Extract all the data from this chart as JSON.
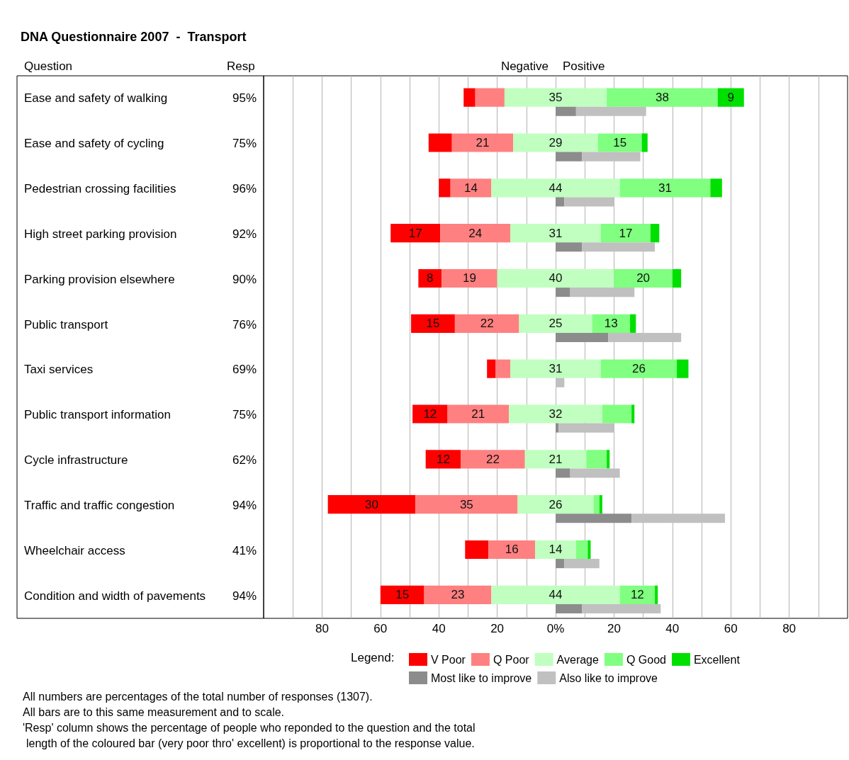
{
  "chart_data": {
    "type": "bar",
    "orientation": "horizontal",
    "title": "DNA Questionnaire 2007  -  Transport",
    "ylabel": "Question",
    "y2label": "Resp",
    "legend_title": "Legend:",
    "categories": [
      "Ease and safety of walking",
      "Ease and safety of cycling",
      "Pedestrian crossing facilities",
      "High street parking provision",
      "Parking provision elsewhere",
      "Public transport",
      "Taxi services",
      "Public transport information",
      "Cycle infrastructure",
      "Traffic and traffic congestion",
      "Wheelchair access",
      "Condition and width of pavements"
    ],
    "y2_categories": [
      "95%",
      "75%",
      "96%",
      "92%",
      "90%",
      "76%",
      "69%",
      "75%",
      "62%",
      "94%",
      "41%",
      "94%"
    ],
    "xlim": [
      -100,
      100
    ],
    "xticks": [
      {
        "value": -90,
        "label": null
      },
      {
        "value": -80,
        "label": "80"
      },
      {
        "value": -70,
        "label": null
      },
      {
        "value": -60,
        "label": "60"
      },
      {
        "value": -50,
        "label": null
      },
      {
        "value": -40,
        "label": "40"
      },
      {
        "value": -30,
        "label": null
      },
      {
        "value": -20,
        "label": "20"
      },
      {
        "value": -10,
        "label": null
      },
      {
        "value": 0,
        "label": "0%"
      },
      {
        "value": 10,
        "label": null
      },
      {
        "value": 20,
        "label": "20"
      },
      {
        "value": 30,
        "label": null
      },
      {
        "value": 40,
        "label": "40"
      },
      {
        "value": 50,
        "label": null
      },
      {
        "value": 60,
        "label": "60"
      },
      {
        "value": 70,
        "label": null
      },
      {
        "value": 80,
        "label": "80"
      },
      {
        "value": 90,
        "label": null
      }
    ],
    "grid": "x",
    "legend": "bottom",
    "series": [
      {
        "name": "V Poor",
        "color": "#ff0000",
        "base": [
          -31.5,
          -43.5,
          -40,
          -56.5,
          -47,
          -49.5,
          -23.5,
          -49,
          -44.5,
          -78,
          -31,
          -60
        ],
        "values": [
          4,
          8,
          4,
          17,
          8,
          15,
          3,
          12,
          12,
          30,
          8,
          15
        ],
        "value_labels": [
          null,
          null,
          null,
          "17",
          "8",
          "15",
          null,
          "12",
          "12",
          "30",
          null,
          "15"
        ]
      },
      {
        "name": "Q Poor",
        "color": "#ff8080",
        "base": [
          -27.5,
          -35.5,
          -36,
          -39.5,
          -39,
          -34.5,
          -20.5,
          -37,
          -32.5,
          -48,
          -23,
          -45
        ],
        "values": [
          10,
          21,
          14,
          24,
          19,
          22,
          5,
          21,
          22,
          35,
          16,
          23
        ],
        "value_labels": [
          null,
          "21",
          "14",
          "24",
          "19",
          "22",
          null,
          "21",
          "22",
          "35",
          "16",
          "23"
        ]
      },
      {
        "name": "Average",
        "color": "#c0ffc0",
        "base": [
          -17.5,
          -14.5,
          -22,
          -15.5,
          -20,
          -12.5,
          -15.5,
          -16,
          -10.5,
          -13,
          -7,
          -22
        ],
        "values": [
          35,
          29,
          44,
          31,
          40,
          25,
          31,
          32,
          21,
          26,
          14,
          44
        ],
        "value_labels": [
          "35",
          "29",
          "44",
          "31",
          "40",
          "25",
          "31",
          "32",
          "21",
          "26",
          "14",
          "44"
        ]
      },
      {
        "name": "Q Good",
        "color": "#80ff80",
        "base": [
          17.5,
          14.5,
          22,
          15.5,
          20,
          12.5,
          15.5,
          16,
          10.5,
          13,
          7,
          22
        ],
        "values": [
          38,
          15,
          31,
          17,
          20,
          13,
          26,
          10,
          7,
          2,
          4,
          12
        ],
        "value_labels": [
          "38",
          "15",
          "31",
          "17",
          "20",
          "13",
          "26",
          null,
          null,
          null,
          null,
          "12"
        ]
      },
      {
        "name": "Excellent",
        "color": "#00e000",
        "base": [
          55.5,
          29.5,
          53,
          32.5,
          40,
          25.5,
          41.5,
          26,
          17.5,
          15,
          11,
          34
        ],
        "values": [
          9,
          2,
          4,
          3,
          3,
          2,
          4,
          1,
          1,
          1,
          1,
          1
        ],
        "value_labels": [
          "9",
          null,
          null,
          null,
          null,
          null,
          null,
          null,
          null,
          null,
          null,
          null
        ]
      },
      {
        "name": "Most like to improve",
        "color": "#8c8c8c",
        "base": [
          0,
          0,
          0,
          0,
          0,
          0,
          null,
          0,
          0,
          0,
          0,
          0
        ],
        "values": [
          7,
          9,
          3,
          9,
          5,
          18,
          null,
          1,
          5,
          26,
          3,
          9
        ]
      },
      {
        "name": "Also like to improve",
        "color": "#c0c0c0",
        "base": [
          7,
          9,
          3,
          9,
          5,
          18,
          0,
          1,
          5,
          26,
          3,
          9
        ],
        "values": [
          24,
          20,
          17,
          25,
          22,
          25,
          3,
          19,
          17,
          32,
          12,
          27
        ]
      }
    ],
    "annotations": [
      "Negative",
      "Positive",
      "All numbers are percentages of the total number of responses (1307).",
      "All bars are to this same measurement and to scale.",
      "'Resp' column shows the percentage of people who reponded to the question and the total",
      "length of the coloured bar (very poor thro' excellent) is proportional to the response value."
    ]
  }
}
